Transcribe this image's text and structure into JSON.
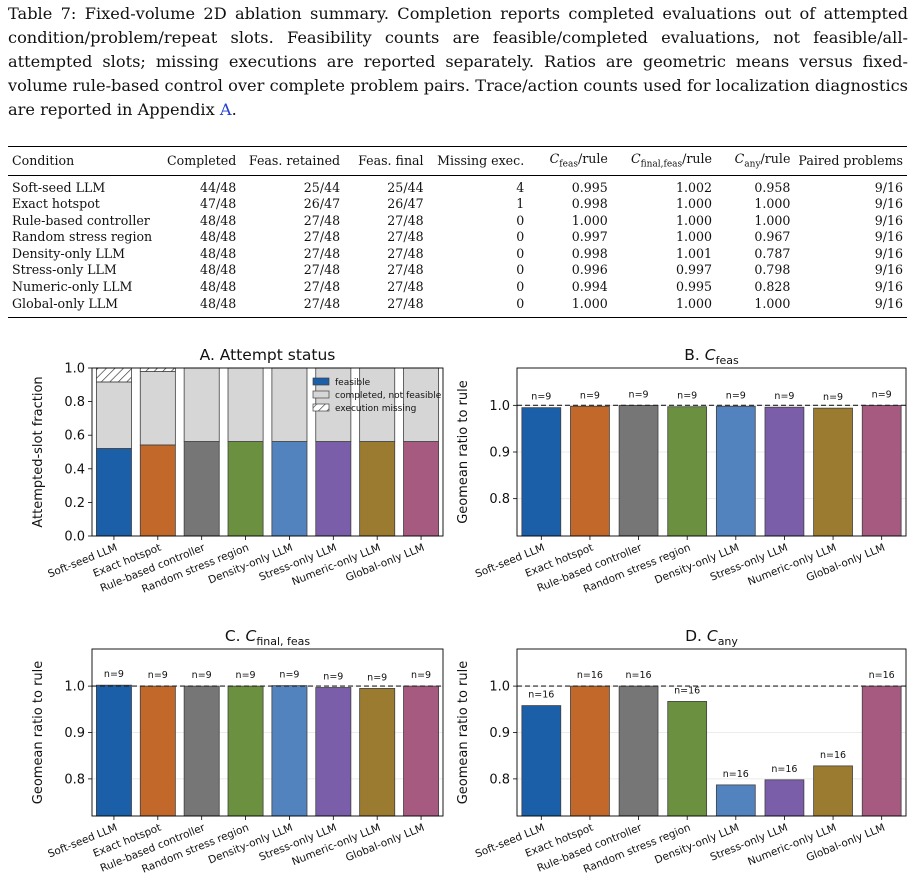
{
  "caption": {
    "label": "Table 7:",
    "text": "Fixed-volume 2D ablation summary. Completion reports completed evaluations out of attempted condition/problem/repeat slots. Feasibility counts are feasible/completed evaluations, not feasible/all-attempted slots; missing executions are reported separately. Ratios are geometric means versus fixed-volume rule-based control over complete problem pairs. Trace/action counts used for localization diagnostics are reported in Appendix",
    "link": "A",
    "end": "."
  },
  "table": {
    "headers": [
      "Condition",
      "Completed",
      "Feas. retained",
      "Feas. final",
      "Missing exec.",
      "C_feas/rule",
      "C_final,feas/rule",
      "C_any/rule",
      "Paired problems"
    ],
    "rows": [
      [
        "Soft-seed LLM",
        "44/48",
        "25/44",
        "25/44",
        "4",
        "0.995",
        "1.002",
        "0.958",
        "9/16"
      ],
      [
        "Exact hotspot",
        "47/48",
        "26/47",
        "26/47",
        "1",
        "0.998",
        "1.000",
        "1.000",
        "9/16"
      ],
      [
        "Rule-based controller",
        "48/48",
        "27/48",
        "27/48",
        "0",
        "1.000",
        "1.000",
        "1.000",
        "9/16"
      ],
      [
        "Random stress region",
        "48/48",
        "27/48",
        "27/48",
        "0",
        "0.997",
        "1.000",
        "0.967",
        "9/16"
      ],
      [
        "Density-only LLM",
        "48/48",
        "27/48",
        "27/48",
        "0",
        "0.998",
        "1.001",
        "0.787",
        "9/16"
      ],
      [
        "Stress-only LLM",
        "48/48",
        "27/48",
        "27/48",
        "0",
        "0.996",
        "0.997",
        "0.798",
        "9/16"
      ],
      [
        "Numeric-only LLM",
        "48/48",
        "27/48",
        "27/48",
        "0",
        "0.994",
        "0.995",
        "0.828",
        "9/16"
      ],
      [
        "Global-only LLM",
        "48/48",
        "27/48",
        "27/48",
        "0",
        "1.000",
        "1.000",
        "1.000",
        "9/16"
      ]
    ]
  },
  "chart_data": [
    {
      "type": "bar",
      "stacked": true,
      "title": "A. Attempt status",
      "ylabel": "Attempted-slot fraction",
      "ylim": [
        0,
        1.0
      ],
      "yticks": [
        "0.0",
        "0.2",
        "0.4",
        "0.6",
        "0.8",
        "1.0"
      ],
      "categories": [
        "Soft-seed LLM",
        "Exact hotspot",
        "Rule-based controller",
        "Random stress region",
        "Density-only LLM",
        "Stress-only LLM",
        "Numeric-only LLM",
        "Global-only LLM"
      ],
      "series": [
        {
          "name": "feasible",
          "values": [
            0.521,
            0.542,
            0.5625,
            0.5625,
            0.5625,
            0.5625,
            0.5625,
            0.5625
          ]
        },
        {
          "name": "completed, not feasible",
          "values": [
            0.396,
            0.437,
            0.4375,
            0.4375,
            0.4375,
            0.4375,
            0.4375,
            0.4375
          ]
        },
        {
          "name": "execution missing",
          "values": [
            0.083,
            0.021,
            0,
            0,
            0,
            0,
            0,
            0
          ]
        }
      ],
      "legend": "top-right"
    },
    {
      "type": "bar",
      "title": "B. C",
      "title_sub": "feas",
      "ylabel": "Geomean ratio to rule",
      "ylim": [
        0.72,
        1.08
      ],
      "yticks": [
        "0.8",
        "0.9",
        "1.0"
      ],
      "reference_line": 1.0,
      "categories": [
        "Soft-seed LLM",
        "Exact hotspot",
        "Rule-based controller",
        "Random stress region",
        "Density-only LLM",
        "Stress-only LLM",
        "Numeric-only LLM",
        "Global-only LLM"
      ],
      "values": [
        0.995,
        0.998,
        1.0,
        0.997,
        0.998,
        0.996,
        0.994,
        1.0
      ],
      "labels": [
        "n=9",
        "n=9",
        "n=9",
        "n=9",
        "n=9",
        "n=9",
        "n=9",
        "n=9"
      ]
    },
    {
      "type": "bar",
      "title": "C. C",
      "title_sub": "final, feas",
      "ylabel": "Geomean ratio to rule",
      "ylim": [
        0.72,
        1.08
      ],
      "yticks": [
        "0.8",
        "0.9",
        "1.0"
      ],
      "reference_line": 1.0,
      "categories": [
        "Soft-seed LLM",
        "Exact hotspot",
        "Rule-based controller",
        "Random stress region",
        "Density-only LLM",
        "Stress-only LLM",
        "Numeric-only LLM",
        "Global-only LLM"
      ],
      "values": [
        1.002,
        1.0,
        1.0,
        1.0,
        1.001,
        0.997,
        0.995,
        1.0
      ],
      "labels": [
        "n=9",
        "n=9",
        "n=9",
        "n=9",
        "n=9",
        "n=9",
        "n=9",
        "n=9"
      ]
    },
    {
      "type": "bar",
      "title": "D. C",
      "title_sub": "any",
      "ylabel": "Geomean ratio to rule",
      "ylim": [
        0.72,
        1.08
      ],
      "yticks": [
        "0.8",
        "0.9",
        "1.0"
      ],
      "reference_line": 1.0,
      "categories": [
        "Soft-seed LLM",
        "Exact hotspot",
        "Rule-based controller",
        "Random stress region",
        "Density-only LLM",
        "Stress-only LLM",
        "Numeric-only LLM",
        "Global-only LLM"
      ],
      "values": [
        0.958,
        1.0,
        1.0,
        0.967,
        0.787,
        0.798,
        0.828,
        1.0
      ],
      "labels": [
        "n=16",
        "n=16",
        "n=16",
        "n=16",
        "n=16",
        "n=16",
        "n=16",
        "n=16"
      ]
    }
  ],
  "colors": {
    "bars": [
      "#1a5fa8",
      "#c1682a",
      "#767676",
      "#6b9040",
      "#5383bf",
      "#7b5ea9",
      "#9b7b2f",
      "#a65a80"
    ],
    "not_feasible": "#d6d6d6",
    "edge": "#404040"
  }
}
